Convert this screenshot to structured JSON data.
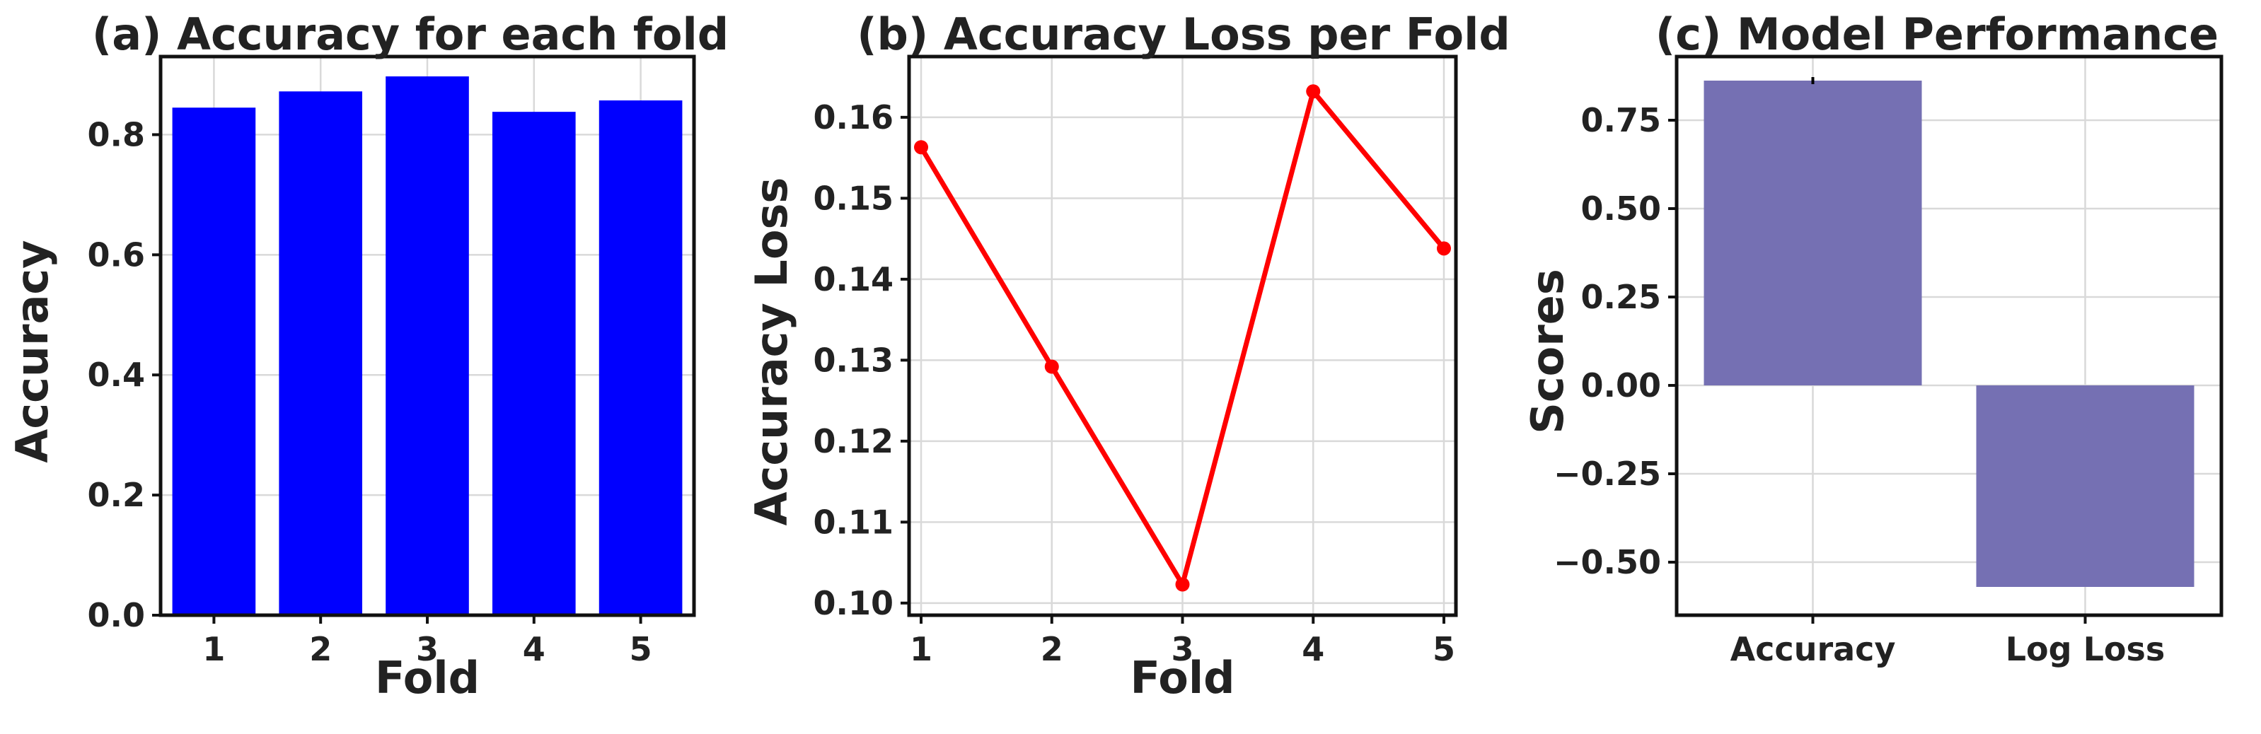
{
  "chart_data": [
    {
      "type": "bar",
      "title": "(a) Accuracy for each fold",
      "xlabel": "Fold",
      "ylabel": "Accuracy",
      "categories": [
        "1",
        "2",
        "3",
        "4",
        "5"
      ],
      "values": [
        0.845,
        0.872,
        0.897,
        0.838,
        0.857
      ],
      "ylim": [
        0,
        0.93
      ],
      "yticks": [
        "0.0",
        "0.2",
        "0.4",
        "0.6",
        "0.8"
      ],
      "ytick_values": [
        0,
        0.2,
        0.4,
        0.6,
        0.8
      ],
      "color": "#0000ff",
      "grid": true
    },
    {
      "type": "line",
      "title": "(b) Accuracy Loss per Fold",
      "xlabel": "Fold",
      "ylabel": "Accuracy Loss",
      "x": [
        1,
        2,
        3,
        4,
        5
      ],
      "xticks": [
        "1",
        "2",
        "3",
        "4",
        "5"
      ],
      "values": [
        0.1563,
        0.1292,
        0.1023,
        0.1632,
        0.1438
      ],
      "ylim": [
        0.0985,
        0.1675
      ],
      "yticks": [
        "0.10",
        "0.11",
        "0.12",
        "0.13",
        "0.14",
        "0.15",
        "0.16"
      ],
      "ytick_values": [
        0.1,
        0.11,
        0.12,
        0.13,
        0.14,
        0.15,
        0.16
      ],
      "color": "#ff0000",
      "marker": "circle",
      "grid": true
    },
    {
      "type": "bar",
      "title": "(c) Model Performance",
      "xlabel": "",
      "ylabel": "Scores",
      "categories": [
        "Accuracy",
        "Log Loss"
      ],
      "values": [
        0.862,
        -0.57
      ],
      "error": [
        0.02,
        0
      ],
      "ylim": [
        -0.65,
        0.93
      ],
      "yticks": [
        "0.75",
        "0.50",
        "0.25",
        "0.00",
        "−0.25",
        "−0.50"
      ],
      "ytick_values": [
        0.75,
        0.5,
        0.25,
        0,
        -0.25,
        -0.5
      ],
      "color": "#7570b3",
      "grid": true
    }
  ]
}
